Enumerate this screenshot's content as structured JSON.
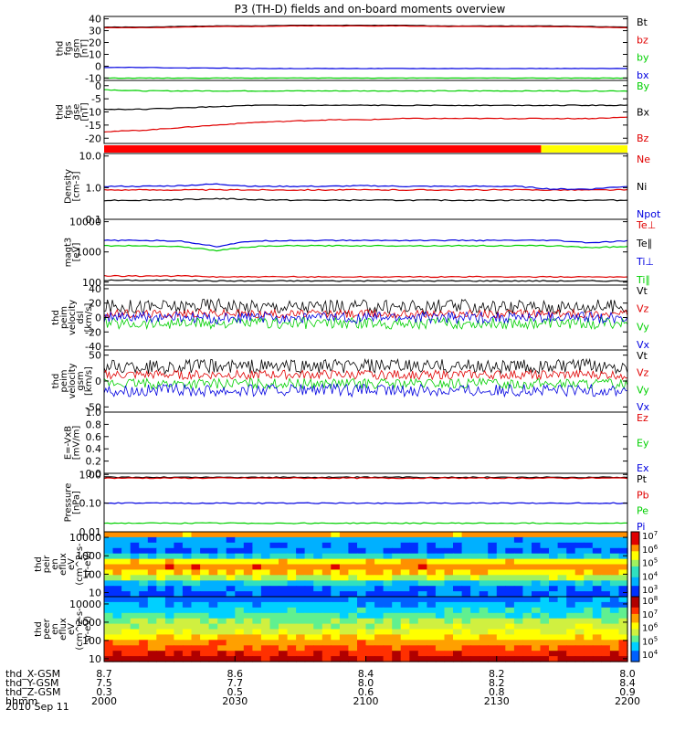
{
  "title": "P3 (TH-D) fields and on-board moments overview",
  "date_label": "2010 Sep 11",
  "colors": {
    "black": "#000000",
    "red": "#e00000",
    "green": "#00d000",
    "blue": "#0000e0",
    "yellow": "#ffff00",
    "bar_red": "#ff0000"
  },
  "chart_data": [
    {
      "type": "line",
      "panel": "fgs_gsm",
      "ylabel": [
        "thd",
        "fgs",
        "gsm",
        "[nT]"
      ],
      "ylim": [
        -12,
        42
      ],
      "ticks": [
        "40",
        "30",
        "20",
        "10",
        "0",
        "-10"
      ],
      "tick_values": [
        40,
        30,
        20,
        10,
        0,
        -10
      ],
      "series": [
        {
          "name": "Bt",
          "color": "black",
          "values": [
            33,
            33,
            33.5,
            34,
            34,
            34.5,
            34.5,
            34.5,
            34.5,
            34,
            34,
            34,
            34,
            33.5,
            33
          ]
        },
        {
          "name": "bz",
          "color": "red",
          "values": [
            32.5,
            32.5,
            33,
            33.5,
            33.5,
            34,
            34,
            34,
            34,
            33.5,
            33.5,
            33.5,
            33.5,
            33,
            32.5
          ]
        },
        {
          "name": "by",
          "color": "green",
          "values": [
            -10,
            -10,
            -10,
            -10,
            -10,
            -10,
            -10,
            -10,
            -10,
            -10,
            -10,
            -10,
            -10,
            -10,
            -10
          ]
        },
        {
          "name": "bx",
          "color": "blue",
          "values": [
            -1,
            -1,
            -1.5,
            -1.5,
            -2,
            -2,
            -2,
            -2,
            -2,
            -2,
            -2,
            -2,
            -2,
            -2,
            -2
          ]
        }
      ]
    },
    {
      "type": "line",
      "panel": "fgs_gse",
      "ylabel": [
        "thd",
        "fgs",
        "gse",
        "[nT]"
      ],
      "ylim": [
        -22,
        2
      ],
      "ticks": [
        "0",
        "-5",
        "-10",
        "-15",
        "-20"
      ],
      "tick_values": [
        0,
        -5,
        -10,
        -15,
        -20
      ],
      "series": [
        {
          "name": "By",
          "color": "green",
          "values": [
            -1.5,
            -2,
            -2,
            -2,
            -2,
            -2,
            -2,
            -2,
            -2,
            -2,
            -2,
            -2,
            -2,
            -2,
            -2
          ]
        },
        {
          "name": "Bx",
          "color": "black",
          "values": [
            -9,
            -9,
            -8.5,
            -8,
            -7.5,
            -7.5,
            -7.5,
            -7.5,
            -7.5,
            -7.5,
            -7.5,
            -7.5,
            -7.5,
            -7.5,
            -7.5
          ]
        },
        {
          "name": "Bz",
          "color": "red",
          "values": [
            -17.5,
            -17,
            -16,
            -15,
            -14,
            -13.5,
            -13,
            -13,
            -12.5,
            -12.5,
            -12.5,
            -12.5,
            -12.5,
            -12.5,
            -12
          ]
        }
      ]
    },
    {
      "type": "line",
      "panel": "density",
      "scale": "log",
      "ylabel": [
        "Density",
        "[cm-3]"
      ],
      "ylim": [
        0.1,
        12
      ],
      "ticks": [
        "10.0",
        "1.0",
        "0.1"
      ],
      "tick_values": [
        10,
        1,
        0.1
      ],
      "series": [
        {
          "name": "Ne",
          "color": "red",
          "values": [
            0.85,
            0.85,
            0.85,
            0.85,
            0.85,
            0.85,
            0.85,
            0.85,
            0.85,
            0.85,
            0.85,
            0.85,
            0.85,
            0.85,
            0.85
          ]
        },
        {
          "name": "Ni",
          "color": "black",
          "values": [
            0.4,
            0.4,
            0.42,
            0.45,
            0.42,
            0.4,
            0.4,
            0.4,
            0.4,
            0.4,
            0.4,
            0.4,
            0.4,
            0.4,
            0.4
          ]
        },
        {
          "name": "Npot",
          "color": "blue",
          "values": [
            1.1,
            1.1,
            1.15,
            1.3,
            1.1,
            1.1,
            1.1,
            1.15,
            1.1,
            1.1,
            1.1,
            1.1,
            0.9,
            0.9,
            1.1
          ]
        }
      ]
    },
    {
      "type": "line",
      "panel": "temperature",
      "scale": "log",
      "ylabel": [
        "magt3",
        "[eV]"
      ],
      "ylim": [
        80,
        12000
      ],
      "ticks": [
        "10000",
        "1000",
        "100"
      ],
      "tick_values": [
        10000,
        1000,
        100
      ],
      "series": [
        {
          "name": "Te⊥",
          "color": "red",
          "values": [
            160,
            160,
            160,
            150,
            150,
            150,
            150,
            150,
            150,
            150,
            150,
            150,
            150,
            150,
            150
          ]
        },
        {
          "name": "Te∥",
          "color": "black",
          "values": [
            115,
            115,
            115,
            110,
            110,
            110,
            110,
            110,
            110,
            110,
            110,
            110,
            110,
            110,
            110
          ]
        },
        {
          "name": "Ti⊥",
          "color": "blue",
          "values": [
            2400,
            2400,
            2300,
            1500,
            2300,
            2400,
            2400,
            2400,
            2400,
            2400,
            2400,
            2400,
            2400,
            2000,
            2300
          ]
        },
        {
          "name": "Ti∥",
          "color": "green",
          "values": [
            1600,
            1600,
            1500,
            1100,
            1500,
            1600,
            1600,
            1600,
            1600,
            1600,
            1600,
            1600,
            1600,
            1400,
            1500
          ]
        }
      ]
    },
    {
      "type": "line",
      "panel": "peim_velocity_dsl",
      "noisy": true,
      "ylabel": [
        "thd",
        "peim",
        "velocity",
        "dsl",
        "[km/s]"
      ],
      "ylim": [
        -45,
        45
      ],
      "ticks": [
        "40",
        "20",
        "0",
        "-20",
        "-40"
      ],
      "tick_values": [
        40,
        20,
        0,
        -20,
        -40
      ],
      "series": [
        {
          "name": "Vt",
          "color": "black",
          "values": [
            15,
            15,
            15,
            18,
            15,
            15,
            15,
            15,
            15,
            15,
            15,
            15,
            15,
            15,
            15
          ],
          "noise": 10
        },
        {
          "name": "Vz",
          "color": "red",
          "values": [
            5,
            5,
            5,
            6,
            5,
            5,
            5,
            5,
            5,
            5,
            5,
            5,
            5,
            5,
            5
          ],
          "noise": 6
        },
        {
          "name": "Vy",
          "color": "green",
          "values": [
            -8,
            -8,
            -8,
            -8,
            -8,
            -8,
            -8,
            -8,
            -8,
            -8,
            -8,
            -8,
            -8,
            -8,
            -8
          ],
          "noise": 8
        },
        {
          "name": "Vx",
          "color": "blue",
          "values": [
            0,
            0,
            0,
            -2,
            0,
            0,
            0,
            0,
            0,
            0,
            0,
            0,
            0,
            0,
            0
          ],
          "noise": 8
        }
      ]
    },
    {
      "type": "line",
      "panel": "peim_velocity_gsm",
      "noisy": true,
      "ylabel": [
        "thd",
        "peim",
        "velocity",
        "gsm",
        "[km/s]"
      ],
      "ylim": [
        -60,
        60
      ],
      "ticks": [
        "50",
        "0",
        "-50"
      ],
      "tick_values": [
        50,
        0,
        -50
      ],
      "series": [
        {
          "name": "Vt",
          "color": "black",
          "values": [
            28,
            28,
            28,
            28,
            28,
            28,
            28,
            28,
            28,
            28,
            28,
            28,
            28,
            28,
            28
          ],
          "noise": 14
        },
        {
          "name": "Vz",
          "color": "red",
          "values": [
            12,
            12,
            12,
            12,
            12,
            12,
            12,
            12,
            12,
            12,
            12,
            12,
            12,
            12,
            12
          ],
          "noise": 9
        },
        {
          "name": "Vy",
          "color": "green",
          "values": [
            -5,
            -5,
            -5,
            -5,
            -5,
            -5,
            -5,
            -5,
            -5,
            -5,
            -5,
            -5,
            -5,
            -5,
            -5
          ],
          "noise": 10
        },
        {
          "name": "Vx",
          "color": "blue",
          "values": [
            -18,
            -18,
            -18,
            -18,
            -18,
            -18,
            -18,
            -18,
            -18,
            -18,
            -18,
            -18,
            -18,
            -18,
            -18
          ],
          "noise": 12
        }
      ]
    },
    {
      "type": "line",
      "panel": "efield",
      "ylabel": [
        "E=-VxB",
        "[mV/m]"
      ],
      "ylim": [
        0,
        1
      ],
      "ticks": [
        "1.0",
        "0.8",
        "0.6",
        "0.4",
        "0.2",
        "0.0"
      ],
      "tick_values": [
        1.0,
        0.8,
        0.6,
        0.4,
        0.2,
        0.0
      ],
      "series": [
        {
          "name": "Ez",
          "color": "red",
          "values": []
        },
        {
          "name": "Ey",
          "color": "green",
          "values": []
        },
        {
          "name": "Ex",
          "color": "blue",
          "values": []
        }
      ]
    },
    {
      "type": "line",
      "panel": "pressure",
      "scale": "log",
      "ylabel": [
        "Pressure",
        "[nPa]"
      ],
      "ylim": [
        0.01,
        1.1
      ],
      "ticks": [
        "1.00",
        "0.10",
        "0.01"
      ],
      "tick_values": [
        1.0,
        0.1,
        0.01
      ],
      "series": [
        {
          "name": "Pt",
          "color": "black",
          "values": [
            0.8,
            0.8,
            0.8,
            0.8,
            0.8,
            0.8,
            0.8,
            0.8,
            0.8,
            0.8,
            0.8,
            0.8,
            0.8,
            0.8,
            0.8
          ]
        },
        {
          "name": "Pb",
          "color": "red",
          "values": [
            0.75,
            0.75,
            0.75,
            0.75,
            0.75,
            0.75,
            0.75,
            0.75,
            0.75,
            0.75,
            0.75,
            0.75,
            0.75,
            0.75,
            0.75
          ]
        },
        {
          "name": "Pe",
          "color": "green",
          "values": [
            0.02,
            0.02,
            0.02,
            0.02,
            0.02,
            0.02,
            0.02,
            0.02,
            0.02,
            0.02,
            0.02,
            0.02,
            0.02,
            0.02,
            0.02
          ]
        },
        {
          "name": "Pi",
          "color": "blue",
          "values": [
            0.1,
            0.1,
            0.1,
            0.1,
            0.1,
            0.1,
            0.1,
            0.1,
            0.1,
            0.1,
            0.1,
            0.1,
            0.1,
            0.1,
            0.1
          ]
        }
      ]
    },
    {
      "type": "heatmap",
      "panel": "peir_spectrogram",
      "scale": "log",
      "ylabel": [
        "thd",
        "peir",
        "en",
        "eflux",
        "eV",
        "(cm^2-s-",
        "sr-eV)"
      ],
      "ylim": [
        6,
        20000
      ],
      "ticks": [
        "10000",
        "1000",
        "100",
        "10"
      ],
      "tick_values": [
        10000,
        1000,
        100,
        10
      ],
      "colorbar_ticks": [
        "10^7",
        "10^6",
        "10^5",
        "10^4",
        "10^3"
      ],
      "profile": [
        3.5,
        3.6,
        4.2,
        5.2,
        5.8,
        6.1,
        5.6,
        4.3,
        3.6,
        3.7,
        3.8,
        6.0
      ]
    },
    {
      "type": "heatmap",
      "panel": "peer_spectrogram",
      "scale": "log",
      "ylabel": [
        "thd",
        "peer",
        "en",
        "eflux",
        "eV",
        "(cm^2-s-",
        "sr-eV)"
      ],
      "ylim": [
        7,
        25000
      ],
      "ticks": [
        "10000",
        "1000",
        "100",
        "10"
      ],
      "tick_values": [
        10000,
        1000,
        100,
        10
      ],
      "colorbar_ticks": [
        "10^8",
        "10^7",
        "10^6",
        "10^5",
        "10^4"
      ],
      "profile": [
        7.6,
        7.3,
        7.0,
        6.7,
        6.3,
        6.0,
        5.8,
        5.6,
        5.3,
        5.0,
        4.7,
        4.4
      ]
    }
  ],
  "status_bar": {
    "segments": [
      {
        "color": "bar_red",
        "from": 0.0,
        "to": 0.835
      },
      {
        "color": "yellow",
        "from": 0.835,
        "to": 1.0
      }
    ]
  },
  "x_axis": {
    "labels": [
      "thd_X-GSM",
      "thd_Y-GSM",
      "thd_Z-GSM",
      "hhmm"
    ],
    "columns": [
      [
        "8.7",
        "7.5",
        "0.3",
        "2000"
      ],
      [
        "8.6",
        "7.7",
        "0.5",
        "2030"
      ],
      [
        "8.4",
        "8.0",
        "0.6",
        "2100"
      ],
      [
        "8.2",
        "8.2",
        "0.8",
        "2130"
      ],
      [
        "8.0",
        "8.4",
        "0.9",
        "2200"
      ]
    ]
  }
}
